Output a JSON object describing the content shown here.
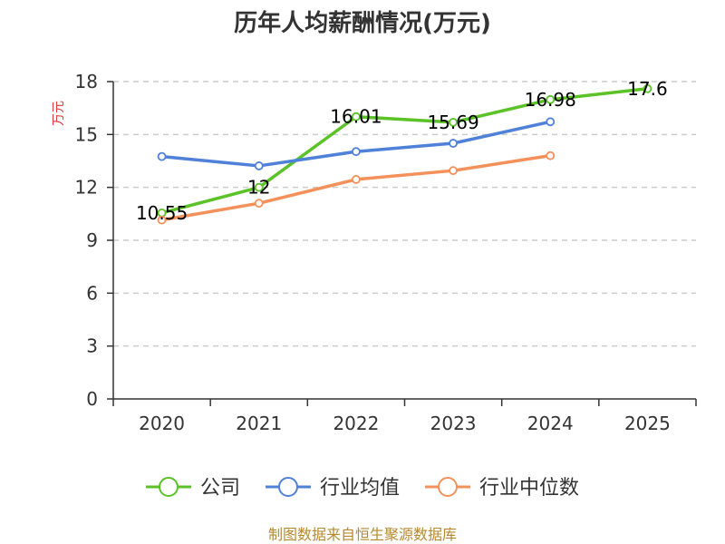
{
  "chart_data": {
    "type": "line",
    "title": "历年人均薪酬情况(万元)",
    "ylabel": "万元",
    "xlabel": "",
    "categories": [
      "2020",
      "2021",
      "2022",
      "2023",
      "2024",
      "2025"
    ],
    "ylim": [
      0,
      18
    ],
    "yticks": [
      0,
      3,
      6,
      9,
      12,
      15,
      18
    ],
    "grid": true,
    "legend_position": "bottom",
    "series": [
      {
        "name": "公司",
        "color": "#5bc227",
        "values": [
          10.55,
          12,
          16.01,
          15.69,
          16.98,
          17.6
        ],
        "labels": [
          "10.55",
          "12",
          "16.01",
          "15.69",
          "16.98",
          "17.6"
        ]
      },
      {
        "name": "行业均值",
        "color": "#4f81d9",
        "values": [
          13.75,
          13.22,
          14.03,
          14.5,
          15.72,
          null
        ],
        "labels": null
      },
      {
        "name": "行业中位数",
        "color": "#f4915a",
        "values": [
          10.15,
          11.1,
          12.45,
          12.95,
          13.8,
          null
        ],
        "labels": null
      }
    ]
  },
  "source": "制图数据来自恒生聚源数据库"
}
